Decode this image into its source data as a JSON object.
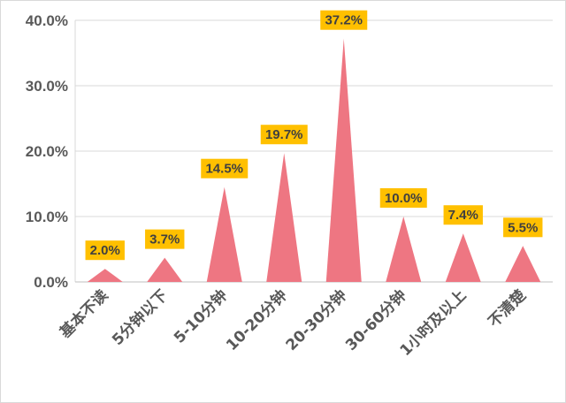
{
  "chart_data": {
    "type": "area",
    "title": "",
    "xlabel": "",
    "ylabel": "",
    "categories": [
      "基本不读",
      "5分钟以下",
      "5-10分钟",
      "10-20分钟",
      "20-30分钟",
      "30-60分钟",
      "1小时及以上",
      "不清楚"
    ],
    "values": [
      2.0,
      3.7,
      14.5,
      19.7,
      37.2,
      10.0,
      7.4,
      5.5
    ],
    "data_labels": [
      "2.0%",
      "3.7%",
      "14.5%",
      "19.7%",
      "37.2%",
      "10.0%",
      "7.4%",
      "5.5%"
    ],
    "y_ticks": [
      "0.0%",
      "10.0%",
      "20.0%",
      "30.0%",
      "40.0%"
    ],
    "ylim": [
      0,
      40
    ],
    "grid": true,
    "legend": "none",
    "colors": {
      "series": "#ee7682",
      "label_bg": "#ffc000",
      "grid": "#d9d9d9",
      "text": "#595959"
    }
  }
}
